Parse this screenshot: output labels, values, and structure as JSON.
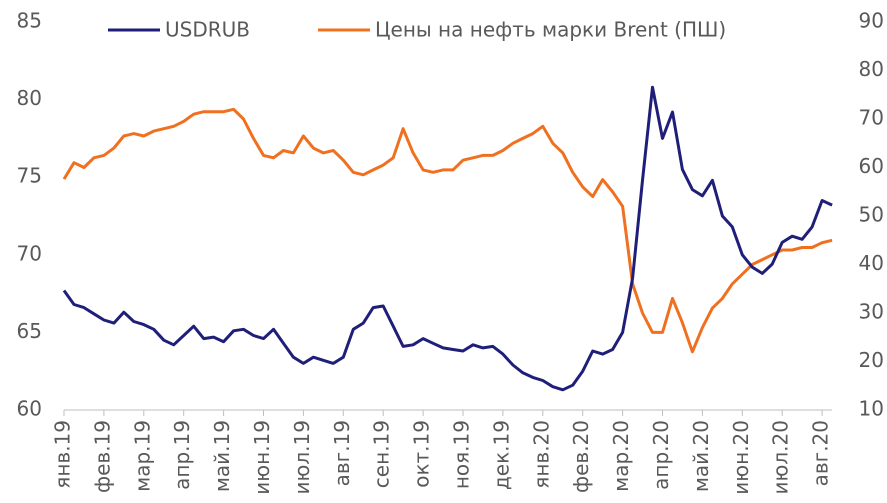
{
  "chart_data": {
    "type": "line",
    "categories": [
      "янв.19",
      null,
      null,
      null,
      "фев.19",
      null,
      null,
      null,
      "мар.19",
      null,
      null,
      null,
      "апр.19",
      null,
      null,
      null,
      "май.19",
      null,
      null,
      null,
      "июн.19",
      null,
      null,
      null,
      "июл.19",
      null,
      null,
      null,
      "авг.19",
      null,
      null,
      null,
      "сен.19",
      null,
      null,
      null,
      "окт.19",
      null,
      null,
      null,
      "ноя.19",
      null,
      null,
      null,
      "дек.19",
      null,
      null,
      null,
      "янв.20",
      null,
      null,
      null,
      "фев.20",
      null,
      null,
      null,
      "мар.20",
      null,
      null,
      null,
      "апр.20",
      null,
      null,
      null,
      "май.20",
      null,
      null,
      null,
      "июн.20",
      null,
      null,
      null,
      "июл.20",
      null,
      null,
      null,
      "авг.20",
      null
    ],
    "series": [
      {
        "name": "USDRUB",
        "color": "#1f1f7a",
        "values": [
          67.7,
          66.8,
          66.6,
          66.2,
          65.8,
          65.6,
          66.3,
          65.7,
          65.5,
          65.2,
          64.5,
          64.2,
          64.8,
          65.4,
          64.6,
          64.7,
          64.4,
          65.1,
          65.2,
          64.8,
          64.6,
          65.2,
          64.3,
          63.4,
          63.0,
          63.4,
          63.2,
          63.0,
          63.4,
          65.2,
          65.6,
          66.6,
          66.7,
          65.4,
          64.1,
          64.2,
          64.6,
          64.3,
          64.0,
          63.9,
          63.8,
          64.2,
          64.0,
          64.1,
          63.6,
          62.9,
          62.4,
          62.1,
          61.9,
          61.5,
          61.3,
          61.6,
          62.5,
          63.8,
          63.6,
          63.9,
          65.0,
          68.5,
          74.8,
          80.8,
          77.5,
          79.2,
          75.5,
          74.2,
          73.8,
          74.8,
          72.5,
          71.8,
          70.0,
          69.2,
          68.8,
          69.4,
          70.8,
          71.2,
          71.0,
          71.8,
          73.5,
          73.2
        ]
      },
      {
        "name": "Цены на нефть марки Brent (ПШ)",
        "color": "#f07020",
        "axis": "y2",
        "values": [
          57.6,
          61,
          60,
          62,
          62.5,
          64,
          66.5,
          67,
          66.5,
          67.5,
          68,
          68.5,
          69.5,
          71,
          71.5,
          71.5,
          71.5,
          72,
          70,
          66,
          62.5,
          62,
          63.5,
          63,
          66.5,
          64,
          63,
          63.5,
          61.5,
          59,
          58.5,
          59.5,
          60.5,
          62,
          68,
          63,
          59.5,
          59,
          59.5,
          59.5,
          61.5,
          62,
          62.5,
          62.5,
          63.5,
          65,
          66,
          67,
          68.5,
          65,
          63,
          59,
          56,
          54,
          57.5,
          55,
          52,
          36,
          30,
          26,
          26,
          33,
          28,
          22,
          27,
          31,
          33,
          36,
          38,
          40,
          41,
          42,
          43,
          43,
          43.5,
          43.5,
          44.5,
          45
        ]
      }
    ],
    "ylim": [
      60,
      85
    ],
    "yticks": [
      60,
      65,
      70,
      75,
      80,
      85
    ],
    "y2lim": [
      10,
      90
    ],
    "y2ticks": [
      10,
      20,
      30,
      40,
      50,
      60,
      70,
      80,
      90
    ],
    "legend": "top",
    "grid": false
  }
}
